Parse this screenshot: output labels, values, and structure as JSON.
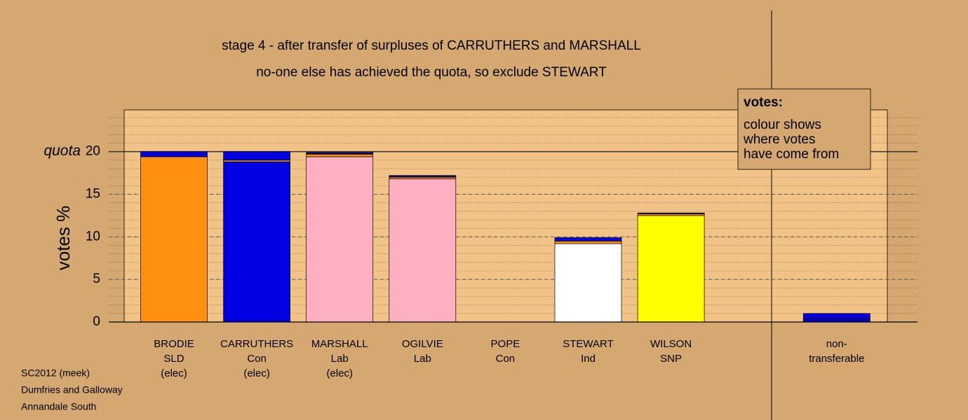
{
  "chart_data": {
    "type": "stacked-bar",
    "title": "stage 4 - after transfer of surpluses of CARRUTHERS and MARSHALL",
    "subtitle": "no-one else has achieved the quota, so exclude STEWART",
    "y_label": "votes %",
    "quota_label": "quota",
    "quota": 20,
    "ylim": [
      0,
      24.9
    ],
    "yticks": [
      0,
      5,
      10,
      15,
      20
    ],
    "bars": [
      {
        "label": [
          "BRODIE",
          "SLD",
          "(elec)"
        ],
        "segments": [
          {
            "color": "#ff9010",
            "value": 19.4
          },
          {
            "color": "#0000e0",
            "value": 0.6
          }
        ]
      },
      {
        "label": [
          "CARRUTHERS",
          "Con",
          "(elec)"
        ],
        "segments": [
          {
            "color": "#0000e0",
            "value": 18.8
          },
          {
            "color": "#ff9010",
            "value": 0.2
          },
          {
            "color": "#0000e0",
            "value": 1.0
          }
        ]
      },
      {
        "label": [
          "MARSHALL",
          "Lab",
          "(elec)"
        ],
        "segments": [
          {
            "color": "#ffb0c0",
            "value": 19.4
          },
          {
            "color": "#ff9010",
            "value": 0.3
          },
          {
            "color": "#000080",
            "value": 0.2
          }
        ]
      },
      {
        "label": [
          "OGILVIE",
          "Lab"
        ],
        "segments": [
          {
            "color": "#ffb0c0",
            "value": 16.8
          },
          {
            "color": "#ff9010",
            "value": 0.2
          },
          {
            "color": "#000080",
            "value": 0.2
          }
        ]
      },
      {
        "label": [
          "POPE",
          "Con"
        ],
        "segments": [
          {
            "color": "#0000e0",
            "value": 0
          }
        ]
      },
      {
        "label": [
          "STEWART",
          "Ind"
        ],
        "segments": [
          {
            "color": "#ffffff",
            "value": 9.2
          },
          {
            "color": "#ff9010",
            "value": 0.3
          },
          {
            "color": "#0000e0",
            "value": 0.4
          }
        ]
      },
      {
        "label": [
          "WILSON",
          "SNP"
        ],
        "segments": [
          {
            "color": "#ffff00",
            "value": 12.5
          },
          {
            "color": "#ff9010",
            "value": 0.2
          },
          {
            "color": "#000080",
            "value": 0.1
          }
        ]
      },
      {
        "label": [
          "non-",
          "transferable"
        ],
        "segments": [
          {
            "color": "#0000c0",
            "value": 0.4
          },
          {
            "color": "#0000e0",
            "value": 0.6
          }
        ]
      }
    ],
    "note": {
      "heading": "votes:",
      "lines": [
        "colour shows",
        "where votes",
        "have come from"
      ]
    },
    "footer": [
      "SC2012 (meek)",
      "Dumfries and Galloway",
      "Annandale South"
    ]
  }
}
